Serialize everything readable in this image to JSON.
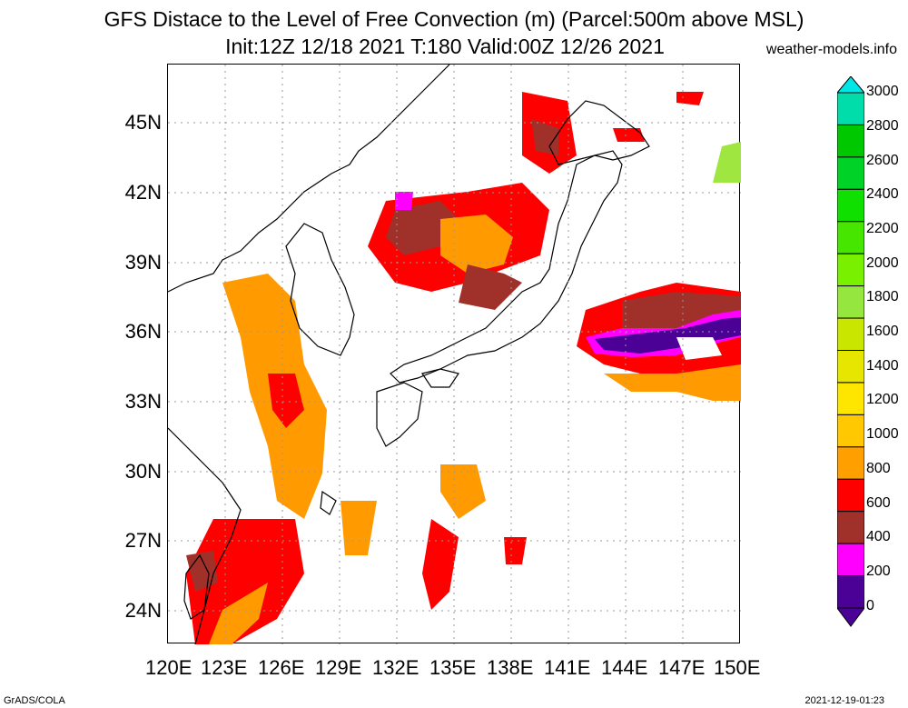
{
  "header": {
    "title_line1": "GFS Distace to the Level of Free Convection (m) (Parcel:500m above MSL)",
    "title_line2": "Init:12Z 12/18 2021 T:180 Valid:00Z 12/26 2021",
    "credit": "weather-models.info"
  },
  "footer": {
    "left": "GrADS/COLA",
    "right": "2021-12-19-01:23"
  },
  "map": {
    "lat_labels": [
      "45N",
      "42N",
      "39N",
      "36N",
      "33N",
      "30N",
      "27N",
      "24N"
    ],
    "lon_labels": [
      "120E",
      "123E",
      "126E",
      "129E",
      "132E",
      "135E",
      "138E",
      "141E",
      "144E",
      "147E",
      "150E"
    ],
    "colors": {
      "purple": "#4b0096",
      "magenta": "#ff00ff",
      "brown": "#a0302a",
      "red": "#ff0000",
      "orange": "#ff9a00",
      "lightorange": "#ffb400",
      "yellowgreen": "#a0e640"
    }
  },
  "colorbar": {
    "labels": [
      "3000",
      "2800",
      "2600",
      "2400",
      "2200",
      "2000",
      "1800",
      "1600",
      "1400",
      "1200",
      "1000",
      "800",
      "600",
      "400",
      "200",
      "0"
    ],
    "colors": [
      "#00dcaa",
      "#00c800",
      "#00d228",
      "#10e000",
      "#46e600",
      "#78f000",
      "#96e640",
      "#c8e600",
      "#e6e600",
      "#ffe600",
      "#ffc800",
      "#ffa000",
      "#ff0000",
      "#a0302a",
      "#ff00ff",
      "#4b0096"
    ],
    "top_arrow_color": "#00e6e6",
    "bottom_arrow_color": "#4b0096"
  }
}
